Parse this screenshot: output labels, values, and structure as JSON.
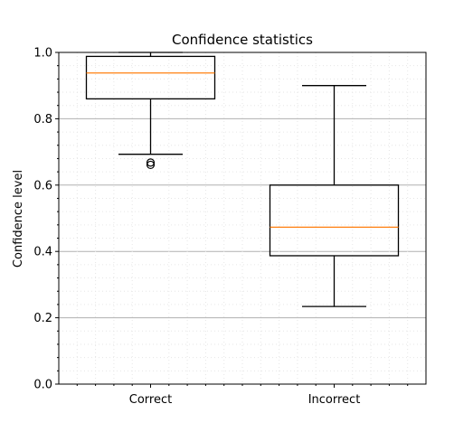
{
  "chart_data": {
    "type": "box",
    "title": "Confidence statistics",
    "xlabel": "",
    "ylabel": "Confidence level",
    "ylim": [
      0.0,
      1.0
    ],
    "yticks": [
      0.0,
      0.2,
      0.4,
      0.6,
      0.8,
      1.0
    ],
    "ytick_labels": [
      "0.0",
      "0.2",
      "0.4",
      "0.6",
      "0.8",
      "1.0"
    ],
    "grid": {
      "major_y": true,
      "minor": true
    },
    "categories": [
      "Correct",
      "Incorrect"
    ],
    "boxes": [
      {
        "name": "Correct",
        "whisker_low": 0.693,
        "q1": 0.86,
        "median": 0.938,
        "q3": 0.988,
        "whisker_high": 1.0,
        "outliers": [
          0.668,
          0.661
        ]
      },
      {
        "name": "Incorrect",
        "whisker_low": 0.234,
        "q1": 0.387,
        "median": 0.473,
        "q3": 0.6,
        "whisker_high": 0.9,
        "outliers": []
      }
    ],
    "colors": {
      "box": "#000000",
      "median": "#ff7f0e",
      "grid_major": "#b0b0b0",
      "grid_minor": "#e6e6e6"
    }
  }
}
